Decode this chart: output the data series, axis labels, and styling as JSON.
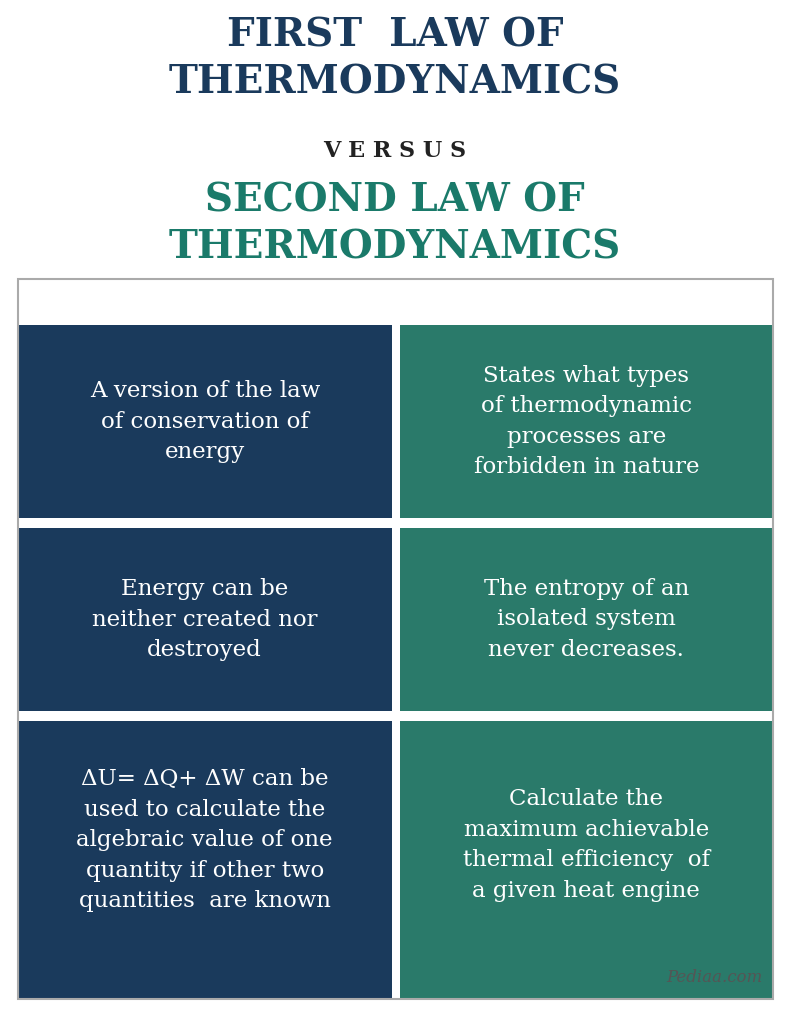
{
  "title1": "FIRST  LAW OF\nTHERMODYNAMICS",
  "versus": "V E R S U S",
  "title2": "SECOND LAW OF\nTHERMODYNAMICS",
  "title1_color": "#1a3a5c",
  "versus_color": "#222222",
  "title2_color": "#1a7a6a",
  "left_bg": "#1a3a5c",
  "right_bg": "#2a7a6a",
  "white_bg": "#ffffff",
  "left_cells": [
    "A version of the law\nof conservation of\nenergy",
    "Energy can be\nneither created nor\ndestroyed",
    "ΔU= ΔQ+ ΔW can be\nused to calculate the\nalgebraic value of one\nquantity if other two\nquantities  are known"
  ],
  "right_cells": [
    "States what types\nof thermodynamic\nprocesses are\nforbidden in nature",
    "The entropy of an\nisolated system\nnever decreases.",
    "Calculate the\nmaximum achievable\nthermal efficiency  of\na given heat engine"
  ],
  "text_color": "#ffffff",
  "divider_color": "#ffffff",
  "watermark": "Pediaa.com",
  "watermark_color": "#555555",
  "fig_bg": "#ffffff"
}
